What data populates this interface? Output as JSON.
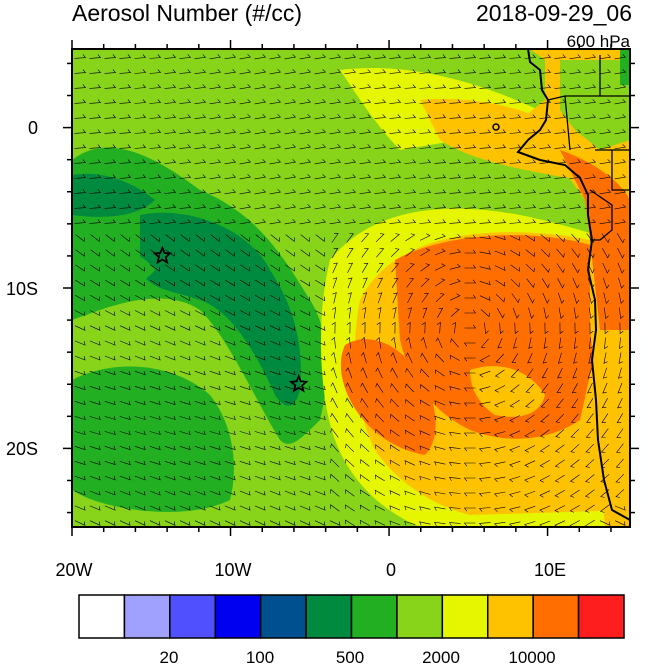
{
  "header": {
    "title": "Aerosol Number (#/cc)",
    "datetime": "2018-09-29_06",
    "level": "600 hPa"
  },
  "map": {
    "lat_labels": [
      "0",
      "10S",
      "20S"
    ],
    "lon_labels": [
      "20W",
      "10W",
      "0",
      "10E"
    ],
    "markers": [
      {
        "name": "star",
        "lon": -14.3,
        "lat": -8.0
      },
      {
        "name": "star",
        "lon": -5.7,
        "lat": -16.0
      }
    ]
  },
  "colorbar": {
    "colors": [
      "#ffffff",
      "#a0a0ff",
      "#5050ff",
      "#0000f0",
      "#005090",
      "#008a40",
      "#22b022",
      "#88d41a",
      "#e6f500",
      "#ffc200",
      "#ff6e00",
      "#ff1e1e"
    ],
    "tick_labels": [
      "20",
      "100",
      "500",
      "2000",
      "10000"
    ]
  }
}
